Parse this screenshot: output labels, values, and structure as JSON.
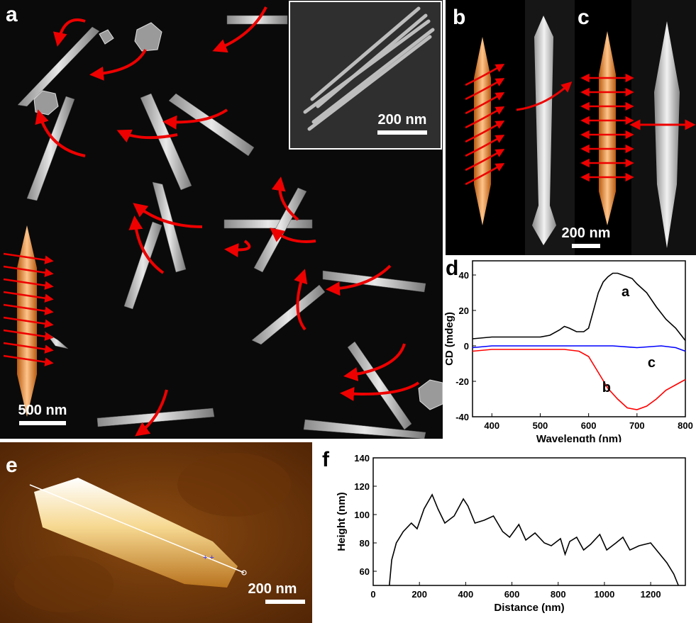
{
  "figure": {
    "panels": {
      "a": {
        "label": "a",
        "scale_bar": "500 nm",
        "inset_scale_bar": "200 nm"
      },
      "b": {
        "label": "b"
      },
      "c": {
        "label": "c",
        "scale_bar": "200 nm"
      },
      "d": {
        "label": "d"
      },
      "e": {
        "label": "e",
        "scale_bar": "200 nm"
      },
      "f": {
        "label": "f"
      }
    }
  },
  "chart_data": [
    {
      "panel": "d",
      "type": "line",
      "xlabel": "Wavelength (nm)",
      "ylabel": "CD (mdeg)",
      "xlim": [
        360,
        800
      ],
      "ylim": [
        -40,
        48
      ],
      "xticks": [
        400,
        500,
        600,
        700,
        800
      ],
      "yticks": [
        -40,
        -20,
        0,
        20,
        40
      ],
      "grid": false,
      "series": [
        {
          "name": "a",
          "color": "#000000",
          "x": [
            360,
            400,
            450,
            500,
            520,
            540,
            550,
            560,
            575,
            590,
            600,
            610,
            620,
            630,
            640,
            650,
            660,
            670,
            680,
            690,
            700,
            720,
            740,
            760,
            780,
            800
          ],
          "y": [
            4,
            5,
            5,
            5,
            6,
            9,
            11,
            10,
            8,
            8,
            10,
            20,
            30,
            36,
            39,
            41,
            41,
            40,
            39,
            38,
            35,
            30,
            22,
            15,
            10,
            3
          ]
        },
        {
          "name": "c",
          "color": "#0000ff",
          "x": [
            360,
            400,
            450,
            500,
            550,
            600,
            650,
            700,
            750,
            780,
            800
          ],
          "y": [
            -1,
            0,
            0,
            0,
            0,
            0,
            0,
            -1,
            0,
            -1,
            -3
          ]
        },
        {
          "name": "b",
          "color": "#ff0000",
          "x": [
            360,
            400,
            450,
            500,
            550,
            580,
            600,
            620,
            640,
            660,
            680,
            700,
            720,
            740,
            760,
            780,
            800
          ],
          "y": [
            -3,
            -2,
            -2,
            -2,
            -2,
            -3,
            -6,
            -15,
            -24,
            -30,
            -35,
            -36,
            -34,
            -30,
            -25,
            -22,
            -19
          ]
        }
      ]
    },
    {
      "panel": "f",
      "type": "line",
      "xlabel": "Distance (nm)",
      "ylabel": "Height (nm)",
      "xlim": [
        0,
        1350
      ],
      "ylim": [
        50,
        140
      ],
      "xticks": [
        0,
        200,
        400,
        600,
        800,
        1000,
        1200
      ],
      "yticks": [
        60,
        80,
        100,
        120,
        140
      ],
      "grid": false,
      "series": [
        {
          "color": "#000000",
          "x": [
            70,
            80,
            100,
            130,
            165,
            190,
            220,
            255,
            280,
            310,
            350,
            390,
            410,
            440,
            480,
            520,
            560,
            590,
            630,
            660,
            700,
            740,
            770,
            810,
            830,
            850,
            880,
            910,
            940,
            980,
            1010,
            1050,
            1080,
            1110,
            1150,
            1200,
            1230,
            1270,
            1300,
            1320
          ],
          "y": [
            50,
            68,
            80,
            88,
            94,
            90,
            104,
            114,
            104,
            94,
            99,
            111,
            106,
            94,
            96,
            99,
            88,
            84,
            93,
            82,
            87,
            80,
            78,
            83,
            72,
            81,
            84,
            75,
            79,
            86,
            75,
            80,
            84,
            75,
            78,
            80,
            74,
            66,
            58,
            50
          ]
        }
      ]
    }
  ]
}
